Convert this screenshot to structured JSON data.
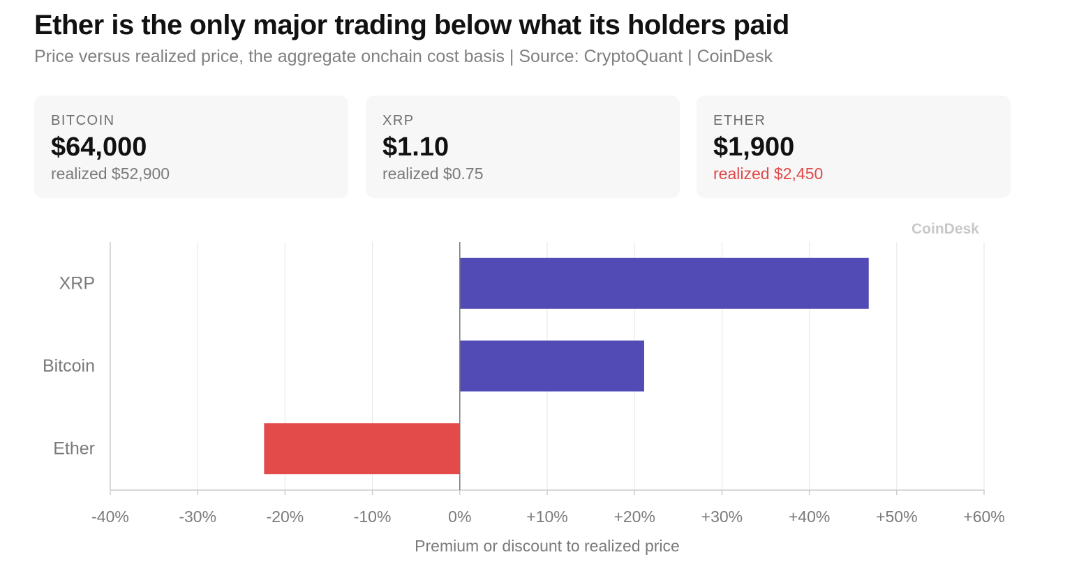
{
  "header": {
    "title": "Ether is the only major trading below what its holders paid",
    "subtitle": "Price versus realized price, the aggregate onchain cost basis | Source: CryptoQuant | CoinDesk"
  },
  "cards": [
    {
      "label": "BITCOIN",
      "value": "$64,000",
      "realized": "realized $52,900",
      "realized_color": "#7a7a7a"
    },
    {
      "label": "XRP",
      "value": "$1.10",
      "realized": "realized $0.75",
      "realized_color": "#7a7a7a"
    },
    {
      "label": "ETHER",
      "value": "$1,900",
      "realized": "realized $2,450",
      "realized_color": "#e04848"
    }
  ],
  "watermark": "CoinDesk",
  "colors": {
    "positive_bar": "#534bb5",
    "negative_bar": "#e34b4b",
    "grid": "#e6e6e6",
    "axis": "#cccccc",
    "zero_line": "#777777",
    "tick_text": "#7a7a7a"
  },
  "chart_data": {
    "type": "bar",
    "orientation": "horizontal",
    "categories": [
      "XRP",
      "Bitcoin",
      "Ether"
    ],
    "values": [
      46.8,
      21.1,
      -22.4
    ],
    "xlabel": "Premium or discount to realized price",
    "ylabel": "",
    "xlim": [
      -40,
      60
    ],
    "x_ticks": [
      -40,
      -30,
      -20,
      -10,
      0,
      10,
      20,
      30,
      40,
      50,
      60
    ],
    "x_tick_labels": [
      "-40%",
      "-30%",
      "-20%",
      "-10%",
      "0%",
      "+10%",
      "+20%",
      "+30%",
      "+40%",
      "+50%",
      "+60%"
    ],
    "grid": true,
    "legend": "none"
  }
}
